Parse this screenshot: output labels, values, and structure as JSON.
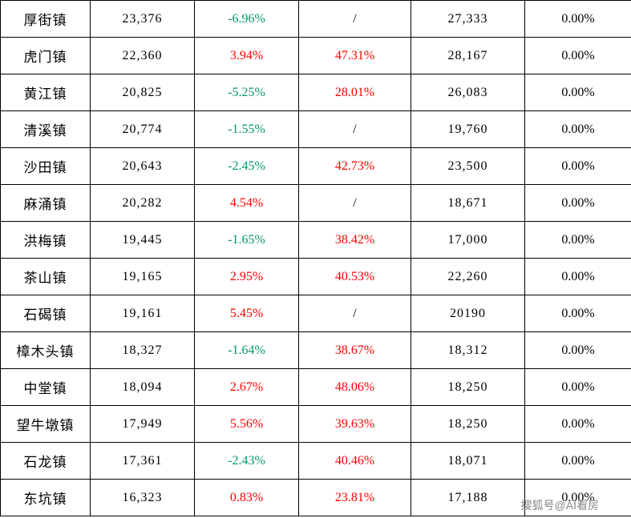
{
  "columns": [
    {
      "key": "name",
      "class": "col-name"
    },
    {
      "key": "val1",
      "class": "col-val1"
    },
    {
      "key": "pct1",
      "class": "col-pct1"
    },
    {
      "key": "pct2",
      "class": "col-pct2"
    },
    {
      "key": "val2",
      "class": "col-val2"
    },
    {
      "key": "pct3",
      "class": "col-pct3"
    }
  ],
  "colors": {
    "positive": "#ff0000",
    "negative": "#009966",
    "neutral": "#000000",
    "border": "#000000",
    "background": "#ffffff",
    "watermark": "#888888"
  },
  "rows": [
    {
      "name": "厚街镇",
      "val1": "23,376",
      "pct1": {
        "text": "-6.96%",
        "cls": "green"
      },
      "pct2": {
        "text": "/",
        "cls": "black"
      },
      "val2": "27,333",
      "pct3": {
        "text": "0.00%",
        "cls": "black"
      }
    },
    {
      "name": "虎门镇",
      "val1": "22,360",
      "pct1": {
        "text": "3.94%",
        "cls": "red"
      },
      "pct2": {
        "text": "47.31%",
        "cls": "red"
      },
      "val2": "28,167",
      "pct3": {
        "text": "0.00%",
        "cls": "black"
      }
    },
    {
      "name": "黄江镇",
      "val1": "20,825",
      "pct1": {
        "text": "-5.25%",
        "cls": "green"
      },
      "pct2": {
        "text": "28.01%",
        "cls": "red"
      },
      "val2": "26,083",
      "pct3": {
        "text": "0.00%",
        "cls": "black"
      }
    },
    {
      "name": "清溪镇",
      "val1": "20,774",
      "pct1": {
        "text": "-1.55%",
        "cls": "green"
      },
      "pct2": {
        "text": "/",
        "cls": "black"
      },
      "val2": "19,760",
      "pct3": {
        "text": "0.00%",
        "cls": "black"
      }
    },
    {
      "name": "沙田镇",
      "val1": "20,643",
      "pct1": {
        "text": "-2.45%",
        "cls": "green"
      },
      "pct2": {
        "text": "42.73%",
        "cls": "red"
      },
      "val2": "23,500",
      "pct3": {
        "text": "0.00%",
        "cls": "black"
      }
    },
    {
      "name": "麻涌镇",
      "val1": "20,282",
      "pct1": {
        "text": "4.54%",
        "cls": "red"
      },
      "pct2": {
        "text": "/",
        "cls": "black"
      },
      "val2": "18,671",
      "pct3": {
        "text": "0.00%",
        "cls": "black"
      }
    },
    {
      "name": "洪梅镇",
      "val1": "19,445",
      "pct1": {
        "text": "-1.65%",
        "cls": "green"
      },
      "pct2": {
        "text": "38.42%",
        "cls": "red"
      },
      "val2": "17,000",
      "pct3": {
        "text": "0.00%",
        "cls": "black"
      }
    },
    {
      "name": "茶山镇",
      "val1": "19,165",
      "pct1": {
        "text": "2.95%",
        "cls": "red"
      },
      "pct2": {
        "text": "40.53%",
        "cls": "red"
      },
      "val2": "22,260",
      "pct3": {
        "text": "0.00%",
        "cls": "black"
      }
    },
    {
      "name": "石碣镇",
      "val1": "19,161",
      "pct1": {
        "text": "5.45%",
        "cls": "red"
      },
      "pct2": {
        "text": "/",
        "cls": "black"
      },
      "val2": "20190",
      "pct3": {
        "text": "0.00%",
        "cls": "black"
      }
    },
    {
      "name": "樟木头镇",
      "val1": "18,327",
      "pct1": {
        "text": "-1.64%",
        "cls": "green"
      },
      "pct2": {
        "text": "38.67%",
        "cls": "red"
      },
      "val2": "18,312",
      "pct3": {
        "text": "0.00%",
        "cls": "black"
      }
    },
    {
      "name": "中堂镇",
      "val1": "18,094",
      "pct1": {
        "text": "2.67%",
        "cls": "red"
      },
      "pct2": {
        "text": "48.06%",
        "cls": "red"
      },
      "val2": "18,250",
      "pct3": {
        "text": "0.00%",
        "cls": "black"
      }
    },
    {
      "name": "望牛墩镇",
      "val1": "17,949",
      "pct1": {
        "text": "5.56%",
        "cls": "red"
      },
      "pct2": {
        "text": "39.63%",
        "cls": "red"
      },
      "val2": "18,250",
      "pct3": {
        "text": "0.00%",
        "cls": "black"
      }
    },
    {
      "name": "石龙镇",
      "val1": "17,361",
      "pct1": {
        "text": "-2.43%",
        "cls": "green"
      },
      "pct2": {
        "text": "40.46%",
        "cls": "red"
      },
      "val2": "18,071",
      "pct3": {
        "text": "0.00%",
        "cls": "black"
      }
    },
    {
      "name": "东坑镇",
      "val1": "16,323",
      "pct1": {
        "text": "0.83%",
        "cls": "red"
      },
      "pct2": {
        "text": "23.81%",
        "cls": "red"
      },
      "val2": "17,188",
      "pct3": {
        "text": "0.00%",
        "cls": "black"
      }
    }
  ],
  "watermark": "搜狐号@AI看房"
}
